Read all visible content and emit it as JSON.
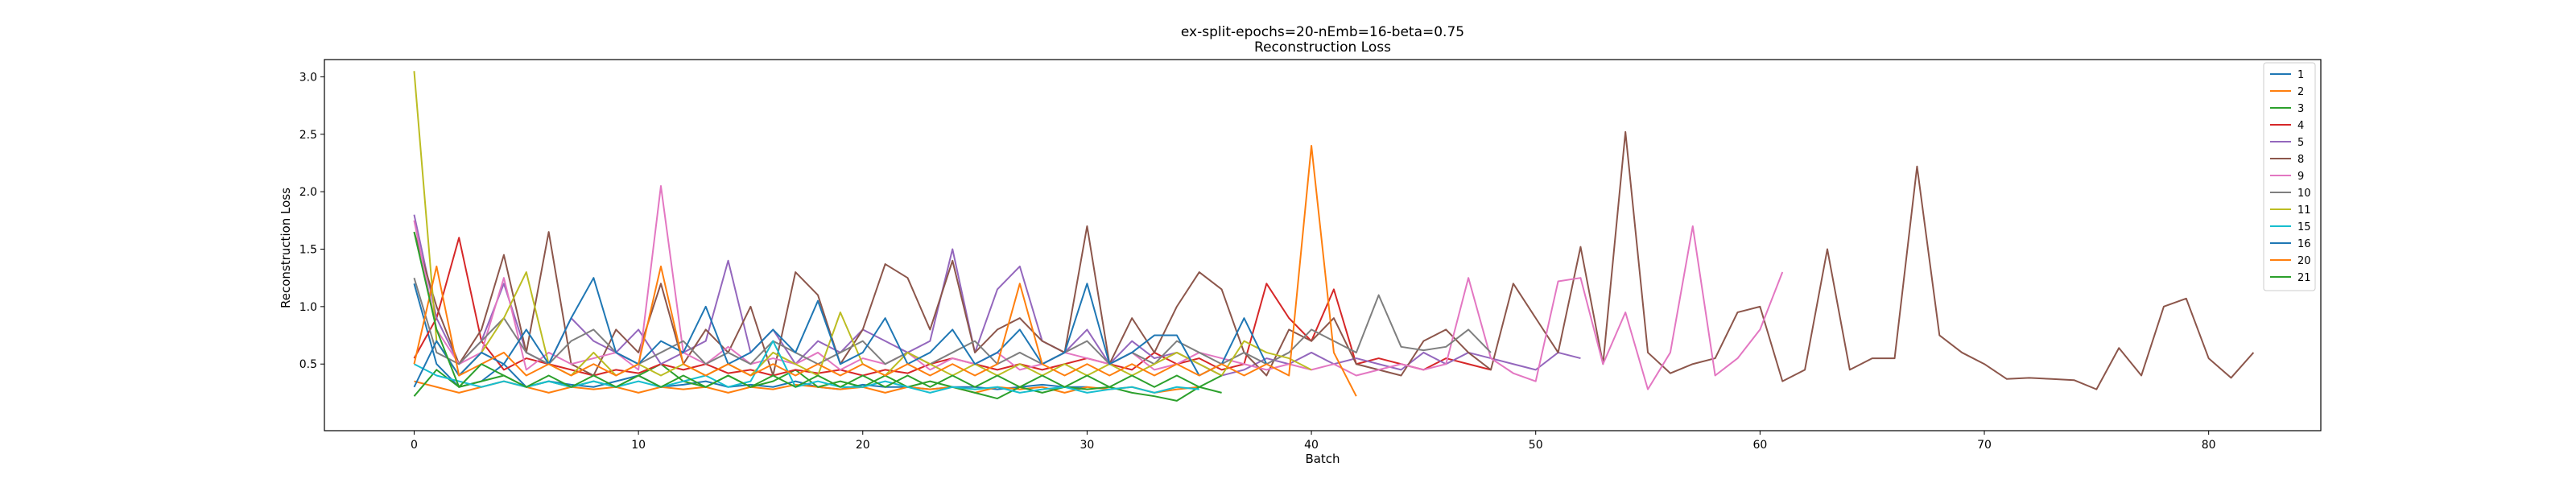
{
  "chart_data": {
    "type": "line",
    "title": "ex-split-epochs=20-nEmb=16-beta=0.75",
    "subtitle": "Reconstruction Loss",
    "xlabel": "Batch",
    "ylabel": "Reconstruction Loss",
    "xlim": [
      -4,
      85
    ],
    "ylim": [
      -0.08,
      3.15
    ],
    "xticks": [
      0,
      10,
      20,
      30,
      40,
      50,
      60,
      70,
      80
    ],
    "yticks": [
      0.5,
      1.0,
      1.5,
      2.0,
      2.5,
      3.0
    ],
    "ytick_labels": [
      "0.5",
      "1.0",
      "1.5",
      "2.0",
      "2.5",
      "3.0"
    ],
    "grid": false,
    "legend_position": "top-right",
    "series": [
      {
        "name": "1",
        "color": "#1f77b4",
        "values": [
          1.2,
          0.5,
          0.3,
          0.35,
          0.5,
          0.3,
          0.35,
          0.32,
          0.3,
          0.35,
          0.4,
          0.3,
          0.32,
          0.35,
          0.3,
          0.32,
          0.3,
          0.35,
          0.3,
          0.28,
          0.32,
          0.3,
          0.3,
          0.28,
          0.3,
          0.3,
          0.28,
          0.3,
          0.32,
          0.3,
          0.3
        ]
      },
      {
        "name": "2",
        "color": "#ff7f0e",
        "values": [
          0.35,
          0.3,
          0.25,
          0.3,
          0.35,
          0.3,
          0.25,
          0.3,
          0.28,
          0.3,
          0.25,
          0.3,
          0.28,
          0.3,
          0.25,
          0.3,
          0.28,
          0.32,
          0.3,
          0.28,
          0.3,
          0.25,
          0.3,
          0.28,
          0.3,
          0.25,
          0.3,
          0.28,
          0.3,
          0.25,
          0.3,
          0.28,
          0.3,
          0.25,
          0.28,
          0.3
        ]
      },
      {
        "name": "3",
        "color": "#2ca02c",
        "values": [
          0.22,
          0.45,
          0.3,
          0.35,
          0.4,
          0.3,
          0.35,
          0.3,
          0.35,
          0.3,
          0.4,
          0.5,
          0.35,
          0.3,
          0.4,
          0.3,
          0.35,
          0.45,
          0.3,
          0.35,
          0.3,
          0.4,
          0.3,
          0.35,
          0.3,
          0.25,
          0.2,
          0.3,
          0.25,
          0.3,
          0.28,
          0.3,
          0.25,
          0.22,
          0.18,
          0.3,
          0.25
        ]
      },
      {
        "name": "4",
        "color": "#d62728",
        "values": [
          0.55,
          0.9,
          1.6,
          0.7,
          0.45,
          0.55,
          0.5,
          0.45,
          0.4,
          0.45,
          0.42,
          0.5,
          0.45,
          0.5,
          0.42,
          0.45,
          0.4,
          0.45,
          0.42,
          0.45,
          0.4,
          0.45,
          0.42,
          0.5,
          0.55,
          0.5,
          0.45,
          0.5,
          0.45,
          0.5,
          0.55,
          0.5,
          0.45,
          0.6,
          0.5,
          0.55,
          0.45,
          0.5,
          1.2,
          0.9,
          0.7,
          1.15,
          0.5,
          0.55,
          0.5,
          0.45,
          0.55,
          0.5,
          0.45
        ]
      },
      {
        "name": "5",
        "color": "#9467bd",
        "values": [
          1.8,
          0.9,
          0.5,
          0.7,
          1.2,
          0.6,
          0.5,
          0.9,
          0.7,
          0.6,
          0.8,
          0.5,
          0.6,
          0.7,
          1.4,
          0.6,
          0.8,
          0.5,
          0.7,
          0.6,
          0.8,
          0.7,
          0.6,
          0.7,
          1.5,
          0.6,
          1.15,
          1.35,
          0.7,
          0.6,
          0.8,
          0.5,
          0.7,
          0.55,
          0.6,
          0.5,
          0.4,
          0.45,
          0.55,
          0.5,
          0.6,
          0.5,
          0.55,
          0.5,
          0.45,
          0.6,
          0.5,
          0.6,
          0.55,
          0.5,
          0.45,
          0.6,
          0.55
        ]
      },
      {
        "name": "8",
        "color": "#8c564b",
        "values": [
          1.65,
          1.0,
          0.5,
          0.8,
          1.45,
          0.6,
          1.65,
          0.5,
          0.4,
          0.8,
          0.6,
          1.2,
          0.5,
          0.8,
          0.6,
          1.0,
          0.4,
          1.3,
          1.1,
          0.5,
          0.8,
          1.37,
          1.25,
          0.8,
          1.4,
          0.6,
          0.8,
          0.9,
          0.7,
          0.6,
          1.7,
          0.5,
          0.9,
          0.6,
          1.0,
          1.3,
          1.15,
          0.6,
          0.4,
          0.8,
          0.7,
          0.9,
          0.5,
          0.45,
          0.4,
          0.7,
          0.8,
          0.6,
          0.45,
          1.2,
          0.9,
          0.6,
          1.52,
          0.5,
          2.52,
          0.6,
          0.42,
          0.5,
          0.55,
          0.95,
          1.0,
          0.35,
          0.45,
          1.5,
          0.45,
          0.55,
          0.55,
          2.22,
          0.75,
          0.6,
          0.5,
          0.37,
          0.38,
          0.37,
          0.36,
          0.28,
          0.64,
          0.4,
          1.0,
          1.07,
          0.55,
          0.38,
          0.6
        ]
      },
      {
        "name": "9",
        "color": "#e377c2",
        "values": [
          1.75,
          0.8,
          0.5,
          0.6,
          1.25,
          0.45,
          0.6,
          0.5,
          0.55,
          0.6,
          0.45,
          2.05,
          0.6,
          0.5,
          0.65,
          0.5,
          0.55,
          0.5,
          0.6,
          0.45,
          0.55,
          0.5,
          0.6,
          0.45,
          0.55,
          0.5,
          0.6,
          0.45,
          0.5,
          0.6,
          0.55,
          0.5,
          0.6,
          0.45,
          0.5,
          0.6,
          0.55,
          0.5,
          0.45,
          0.5,
          0.45,
          0.5,
          0.4,
          0.45,
          0.5,
          0.45,
          0.5,
          1.25,
          0.55,
          0.42,
          0.35,
          1.22,
          1.25,
          0.5,
          0.95,
          0.28,
          0.6,
          1.7,
          0.4,
          0.55,
          0.8,
          1.3
        ]
      },
      {
        "name": "10",
        "color": "#7f7f7f",
        "values": [
          1.25,
          0.6,
          0.5,
          0.7,
          0.9,
          0.6,
          0.5,
          0.7,
          0.8,
          0.6,
          0.5,
          0.6,
          0.7,
          0.5,
          0.6,
          0.5,
          0.7,
          0.6,
          0.5,
          0.6,
          0.7,
          0.5,
          0.6,
          0.5,
          0.6,
          0.7,
          0.5,
          0.6,
          0.5,
          0.6,
          0.7,
          0.5,
          0.6,
          0.5,
          0.7,
          0.6,
          0.5,
          0.6,
          0.5,
          0.6,
          0.8,
          0.7,
          0.6,
          1.1,
          0.65,
          0.62,
          0.65,
          0.8,
          0.6
        ]
      },
      {
        "name": "11",
        "color": "#bcbd22",
        "values": [
          3.05,
          0.7,
          0.4,
          0.6,
          0.9,
          1.3,
          0.5,
          0.4,
          0.6,
          0.4,
          0.5,
          0.4,
          0.5,
          0.4,
          0.5,
          0.4,
          0.6,
          0.5,
          0.4,
          0.95,
          0.5,
          0.4,
          0.6,
          0.5,
          0.4,
          0.5,
          0.4,
          0.5,
          0.4,
          0.5,
          0.4,
          0.5,
          0.4,
          0.5,
          0.6,
          0.5,
          0.4,
          0.7,
          0.6,
          0.55,
          0.45
        ]
      },
      {
        "name": "15",
        "color": "#17becf",
        "values": [
          0.5,
          0.4,
          0.35,
          0.3,
          0.35,
          0.3,
          0.35,
          0.3,
          0.35,
          0.3,
          0.35,
          0.3,
          0.35,
          0.4,
          0.3,
          0.35,
          0.7,
          0.3,
          0.35,
          0.3,
          0.3,
          0.35,
          0.3,
          0.25,
          0.3,
          0.28,
          0.3,
          0.25,
          0.28,
          0.3,
          0.25,
          0.28,
          0.3,
          0.25,
          0.3,
          0.28
        ]
      },
      {
        "name": "16",
        "color": "#1f77b4",
        "values": [
          0.3,
          0.7,
          0.4,
          0.6,
          0.5,
          0.8,
          0.5,
          0.9,
          1.25,
          0.6,
          0.5,
          0.7,
          0.6,
          1.0,
          0.5,
          0.6,
          0.8,
          0.6,
          1.05,
          0.5,
          0.6,
          0.9,
          0.5,
          0.6,
          0.8,
          0.5,
          0.6,
          0.8,
          0.5,
          0.6,
          1.2,
          0.5,
          0.6,
          0.75,
          0.75,
          0.4,
          0.5,
          0.9,
          0.5
        ]
      },
      {
        "name": "20",
        "color": "#ff7f0e",
        "values": [
          0.5,
          1.35,
          0.4,
          0.5,
          0.6,
          0.4,
          0.5,
          0.4,
          0.5,
          0.4,
          0.5,
          1.35,
          0.5,
          0.4,
          0.5,
          0.4,
          0.5,
          0.4,
          0.5,
          0.4,
          0.5,
          0.4,
          0.5,
          0.4,
          0.5,
          0.4,
          0.5,
          1.2,
          0.5,
          0.4,
          0.5,
          0.4,
          0.5,
          0.4,
          0.5,
          0.4,
          0.5,
          0.4,
          0.5,
          0.4,
          2.4,
          0.6,
          0.22
        ]
      },
      {
        "name": "21",
        "color": "#2ca02c",
        "values": [
          1.65,
          0.8,
          0.3,
          0.5,
          0.4,
          0.3,
          0.4,
          0.3,
          0.4,
          0.3,
          0.4,
          0.3,
          0.4,
          0.3,
          0.4,
          0.3,
          0.4,
          0.3,
          0.4,
          0.3,
          0.4,
          0.3,
          0.4,
          0.3,
          0.4,
          0.3,
          0.4,
          0.3,
          0.4,
          0.3,
          0.4,
          0.3,
          0.4,
          0.3,
          0.4,
          0.3,
          0.4
        ]
      }
    ]
  }
}
